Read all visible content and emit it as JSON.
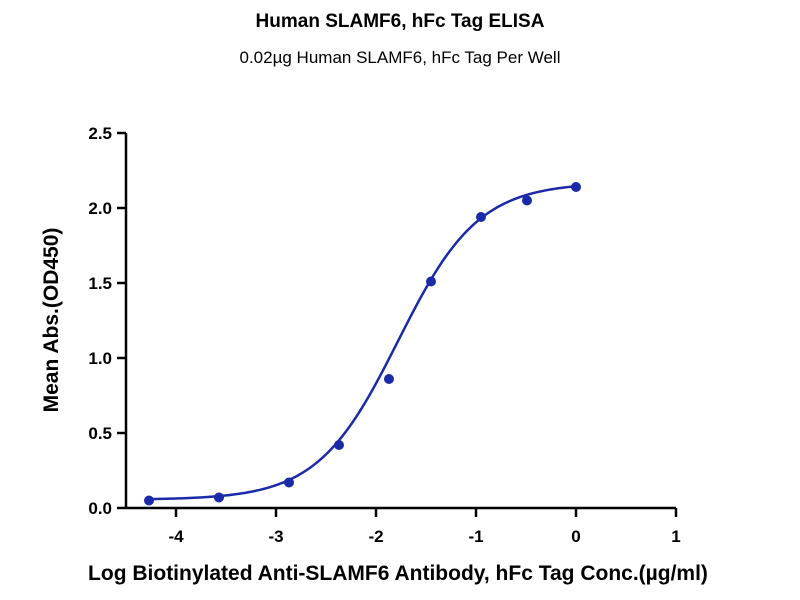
{
  "chart_data": {
    "type": "scatter",
    "title": "Human SLAMF6, hFc Tag ELISA",
    "subtitle": "0.02µg Human SLAMF6, hFc Tag Per Well",
    "xlabel": "Log Biotinylated Anti-SLAMF6 Antibody, hFc Tag Conc.(µg/ml)",
    "ylabel": "Mean Abs.(OD450)",
    "xlim": [
      -4.5,
      1
    ],
    "ylim": [
      0,
      2.5
    ],
    "xticks": [
      "-4",
      "-3",
      "-2",
      "-1",
      "0",
      "1"
    ],
    "yticks": [
      "0.0",
      "0.5",
      "1.0",
      "1.5",
      "2.0",
      "2.5"
    ],
    "grid": false,
    "legend": "none",
    "series": [
      {
        "x": [
          -4.27,
          -3.57,
          -2.87,
          -2.37,
          -1.87,
          -1.45,
          -0.95,
          -0.49,
          0.0
        ],
        "y": [
          0.05,
          0.07,
          0.17,
          0.42,
          0.86,
          1.51,
          1.94,
          2.05,
          2.14
        ],
        "fit": "four-parameter logistic"
      }
    ],
    "colors": {
      "series": "#1a2aa8",
      "axes": "#000000"
    }
  }
}
